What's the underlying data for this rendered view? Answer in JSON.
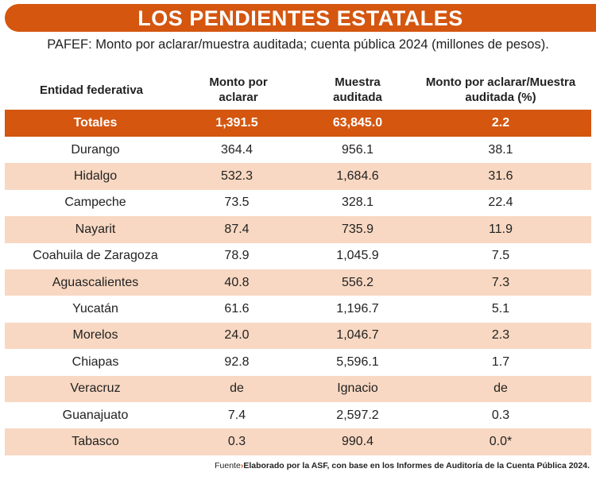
{
  "title": "LOS PENDIENTES ESTATALES",
  "subtitle": "PAFEF: Monto por aclarar/muestra auditada; cuenta pública 2024 (millones de pesos).",
  "headers": [
    "Entidad federativa",
    "Monto por aclarar",
    "Muestra auditada",
    "Monto por aclarar/Muestra auditada (%)"
  ],
  "totals": [
    "Totales",
    "1,391.5",
    "63,845.0",
    "2.2"
  ],
  "rows": [
    [
      "Durango",
      "364.4",
      "956.1",
      "38.1"
    ],
    [
      "Hidalgo",
      "532.3",
      "1,684.6",
      "31.6"
    ],
    [
      "Campeche",
      "73.5",
      "328.1",
      "22.4"
    ],
    [
      "Nayarit",
      "87.4",
      "735.9",
      "11.9"
    ],
    [
      "Coahuila de Zaragoza",
      "78.9",
      "1,045.9",
      "7.5"
    ],
    [
      "Aguascalientes",
      "40.8",
      "556.2",
      "7.3"
    ],
    [
      "Yucatán",
      "61.6",
      "1,196.7",
      "5.1"
    ],
    [
      "Morelos",
      "24.0",
      "1,046.7",
      "2.3"
    ],
    [
      "Chiapas",
      "92.8",
      "5,596.1",
      "1.7"
    ],
    [
      "Veracruz",
      "de",
      "Ignacio",
      "de"
    ],
    [
      "Guanajuato",
      "7.4",
      "2,597.2",
      "0.3"
    ],
    [
      "Tabasco",
      "0.3",
      "990.4",
      "0.0*"
    ]
  ],
  "source": {
    "label": "Fuente",
    "text": "Elaborado por la ASF, con base en los Informes de Auditoría de la Cuenta Pública 2024."
  },
  "colors": {
    "accent": "#d4560f",
    "alt_row": "#f8d8c2"
  }
}
